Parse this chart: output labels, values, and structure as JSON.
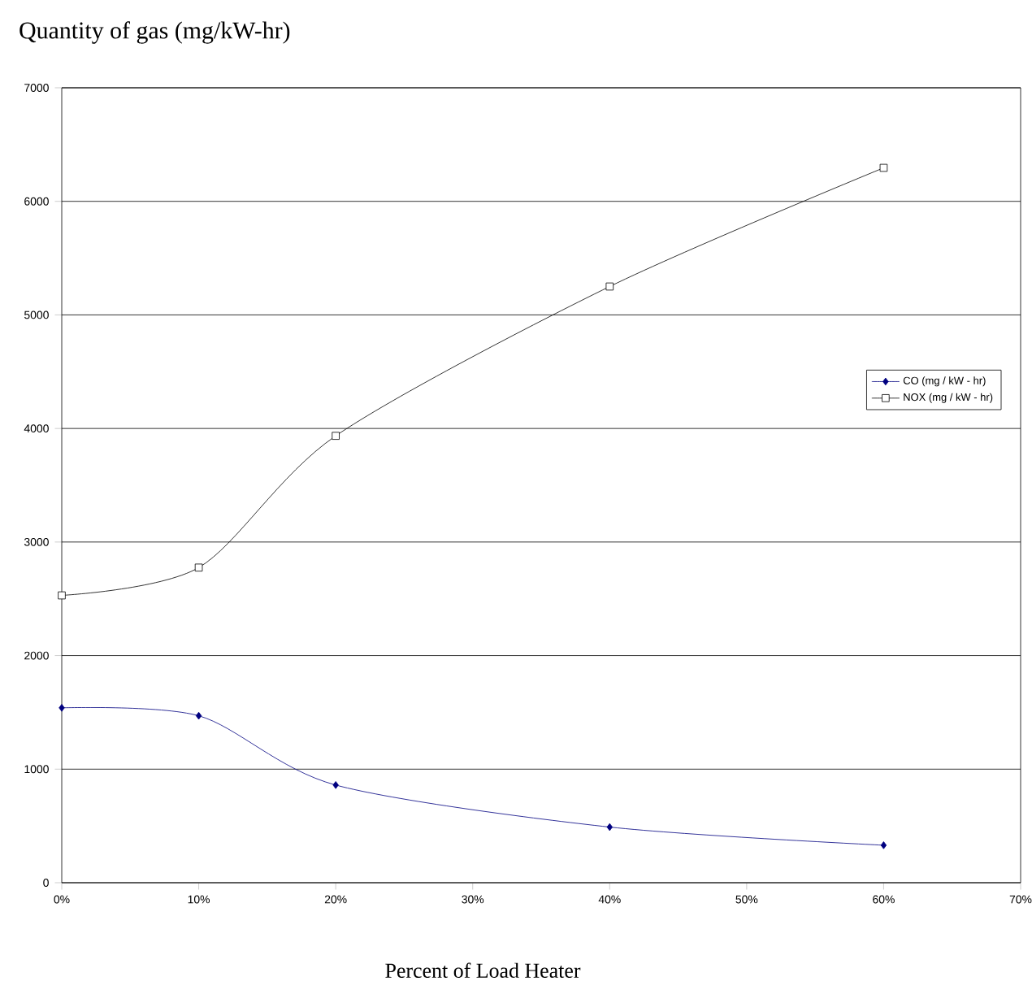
{
  "chart_data": {
    "type": "line",
    "title": "Quantity of gas (mg/kW-hr)",
    "xlabel": "Percent of Load Heater",
    "x": [
      0,
      10,
      20,
      40,
      60
    ],
    "series": [
      {
        "name": "CO (mg / kW - hr)",
        "color": "#000080",
        "marker": "diamond",
        "values": [
          1540,
          1470,
          860,
          490,
          330
        ]
      },
      {
        "name": "NOX (mg / kW - hr)",
        "color": "#000000",
        "marker": "square",
        "values": [
          2530,
          2775,
          3935,
          5250,
          6295
        ]
      }
    ],
    "xlim": [
      0,
      70
    ],
    "xticks": [
      {
        "value": 0,
        "label": "0%"
      },
      {
        "value": 10,
        "label": "10%"
      },
      {
        "value": 20,
        "label": "20%"
      },
      {
        "value": 30,
        "label": "30%"
      },
      {
        "value": 40,
        "label": "40%"
      },
      {
        "value": 50,
        "label": "50%"
      },
      {
        "value": 60,
        "label": "60%"
      },
      {
        "value": 70,
        "label": "70%"
      }
    ],
    "ylim": [
      0,
      7000
    ],
    "yticks": [
      0,
      1000,
      2000,
      3000,
      4000,
      5000,
      6000,
      7000
    ],
    "grid": "y",
    "legend": "right",
    "line_style": "solid"
  }
}
